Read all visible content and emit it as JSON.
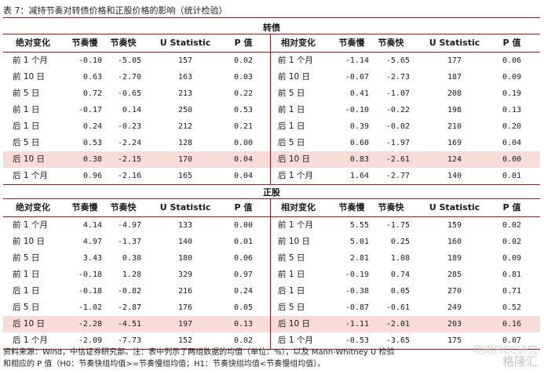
{
  "caption": "表 7：减持节奏对转债价格和正股价格的影响（统计检验）",
  "headers_left": [
    "绝对变化",
    "节奏慢",
    "节奏快",
    "U Statistic",
    "P 值"
  ],
  "headers_right": [
    "相对变化",
    "节奏慢",
    "节奏快",
    "U Statistic",
    "P 值"
  ],
  "sections": [
    {
      "title": "转债",
      "rows": [
        {
          "left": [
            "前 1 个月",
            "-0.10",
            "-5.05",
            "157",
            "0.02"
          ],
          "right": [
            "前 1 个月",
            "-1.14",
            "-5.65",
            "177",
            "0.06"
          ]
        },
        {
          "left": [
            "前 10 日",
            "0.63",
            "-2.70",
            "163",
            "0.03"
          ],
          "right": [
            "前 10 日",
            "-0.07",
            "-2.73",
            "187",
            "0.09"
          ]
        },
        {
          "left": [
            "前 5 日",
            "0.72",
            "-0.65",
            "213",
            "0.22"
          ],
          "right": [
            "前 5 日",
            "0.41",
            "-1.07",
            "208",
            "0.19"
          ]
        },
        {
          "left": [
            "前 1 日",
            "-0.17",
            "0.14",
            "250",
            "0.53"
          ],
          "right": [
            "前 1 日",
            "-0.10",
            "-0.22",
            "198",
            "0.13"
          ]
        },
        {
          "left": [
            "后 1 日",
            "0.24",
            "-0.23",
            "212",
            "0.21"
          ],
          "right": [
            "后 1 日",
            "0.39",
            "-0.02",
            "210",
            "0.20"
          ]
        },
        {
          "left": [
            "后 5 日",
            "0.53",
            "-2.24",
            "128",
            "0.00"
          ],
          "right": [
            "后 5 日",
            "0.60",
            "-1.97",
            "169",
            "0.04"
          ]
        },
        {
          "left": [
            "后 10 日",
            "0.38",
            "-2.15",
            "170",
            "0.04"
          ],
          "right": [
            "后 10 日",
            "0.83",
            "-2.61",
            "124",
            "0.00"
          ],
          "highlight": true
        },
        {
          "left": [
            "后 1 个月",
            "0.96",
            "-2.16",
            "165",
            "0.04"
          ],
          "right": [
            "后 1 个月",
            "1.64",
            "-2.77",
            "140",
            "0.01"
          ]
        }
      ]
    },
    {
      "title": "正股",
      "rows": [
        {
          "left": [
            "前 1 个月",
            "4.14",
            "-4.97",
            "133",
            "0.00"
          ],
          "right": [
            "前 1 个月",
            "5.55",
            "-1.75",
            "159",
            "0.02"
          ]
        },
        {
          "left": [
            "前 10 日",
            "4.97",
            "-1.37",
            "140",
            "0.01"
          ],
          "right": [
            "前 10 日",
            "5.01",
            "0.25",
            "160",
            "0.02"
          ]
        },
        {
          "left": [
            "前 5 日",
            "3.43",
            "0.38",
            "180",
            "0.06"
          ],
          "right": [
            "前 5 日",
            "2.81",
            "1.08",
            "189",
            "0.09"
          ]
        },
        {
          "left": [
            "前 1 日",
            "-0.18",
            "1.28",
            "329",
            "0.97"
          ],
          "right": [
            "前 1 日",
            "-0.19",
            "0.74",
            "285",
            "0.81"
          ]
        },
        {
          "left": [
            "后 1 日",
            "-0.18",
            "-0.82",
            "216",
            "0.24"
          ],
          "right": [
            "后 1 日",
            "-0.38",
            "0.05",
            "270",
            "0.71"
          ]
        },
        {
          "left": [
            "后 5 日",
            "-1.02",
            "-2.87",
            "176",
            "0.05"
          ],
          "right": [
            "后 5 日",
            "-0.87",
            "-0.61",
            "249",
            "0.52"
          ]
        },
        {
          "left": [
            "后 10 日",
            "-2.28",
            "-4.51",
            "197",
            "0.13"
          ],
          "right": [
            "后 10 日",
            "-1.11",
            "-2.01",
            "203",
            "0.16"
          ],
          "highlight": true
        },
        {
          "left": [
            "后 1 个月",
            "-2.09",
            "-7.73",
            "152",
            "0.02"
          ],
          "right": [
            "后 1 个月",
            "-0.53",
            "-3.65",
            "175",
            "0.07"
          ]
        }
      ]
    }
  ],
  "note_line1": "资料来源：Wind，中信证券研究部。注：表中列示了两组数据的均值（单位：%），以及 Mann-Whitney U 检验",
  "note_line2": "和相应的 P 值（H0：节奏快组均值>=节奏慢组均值；H1：节奏快组均值<节奏慢组均值）。",
  "watermark_line1": "明晰FICC研究",
  "watermark_line2": "格隆汇",
  "colors": {
    "rule": "#9b1b1b",
    "highlight": "#f7dcd8"
  }
}
